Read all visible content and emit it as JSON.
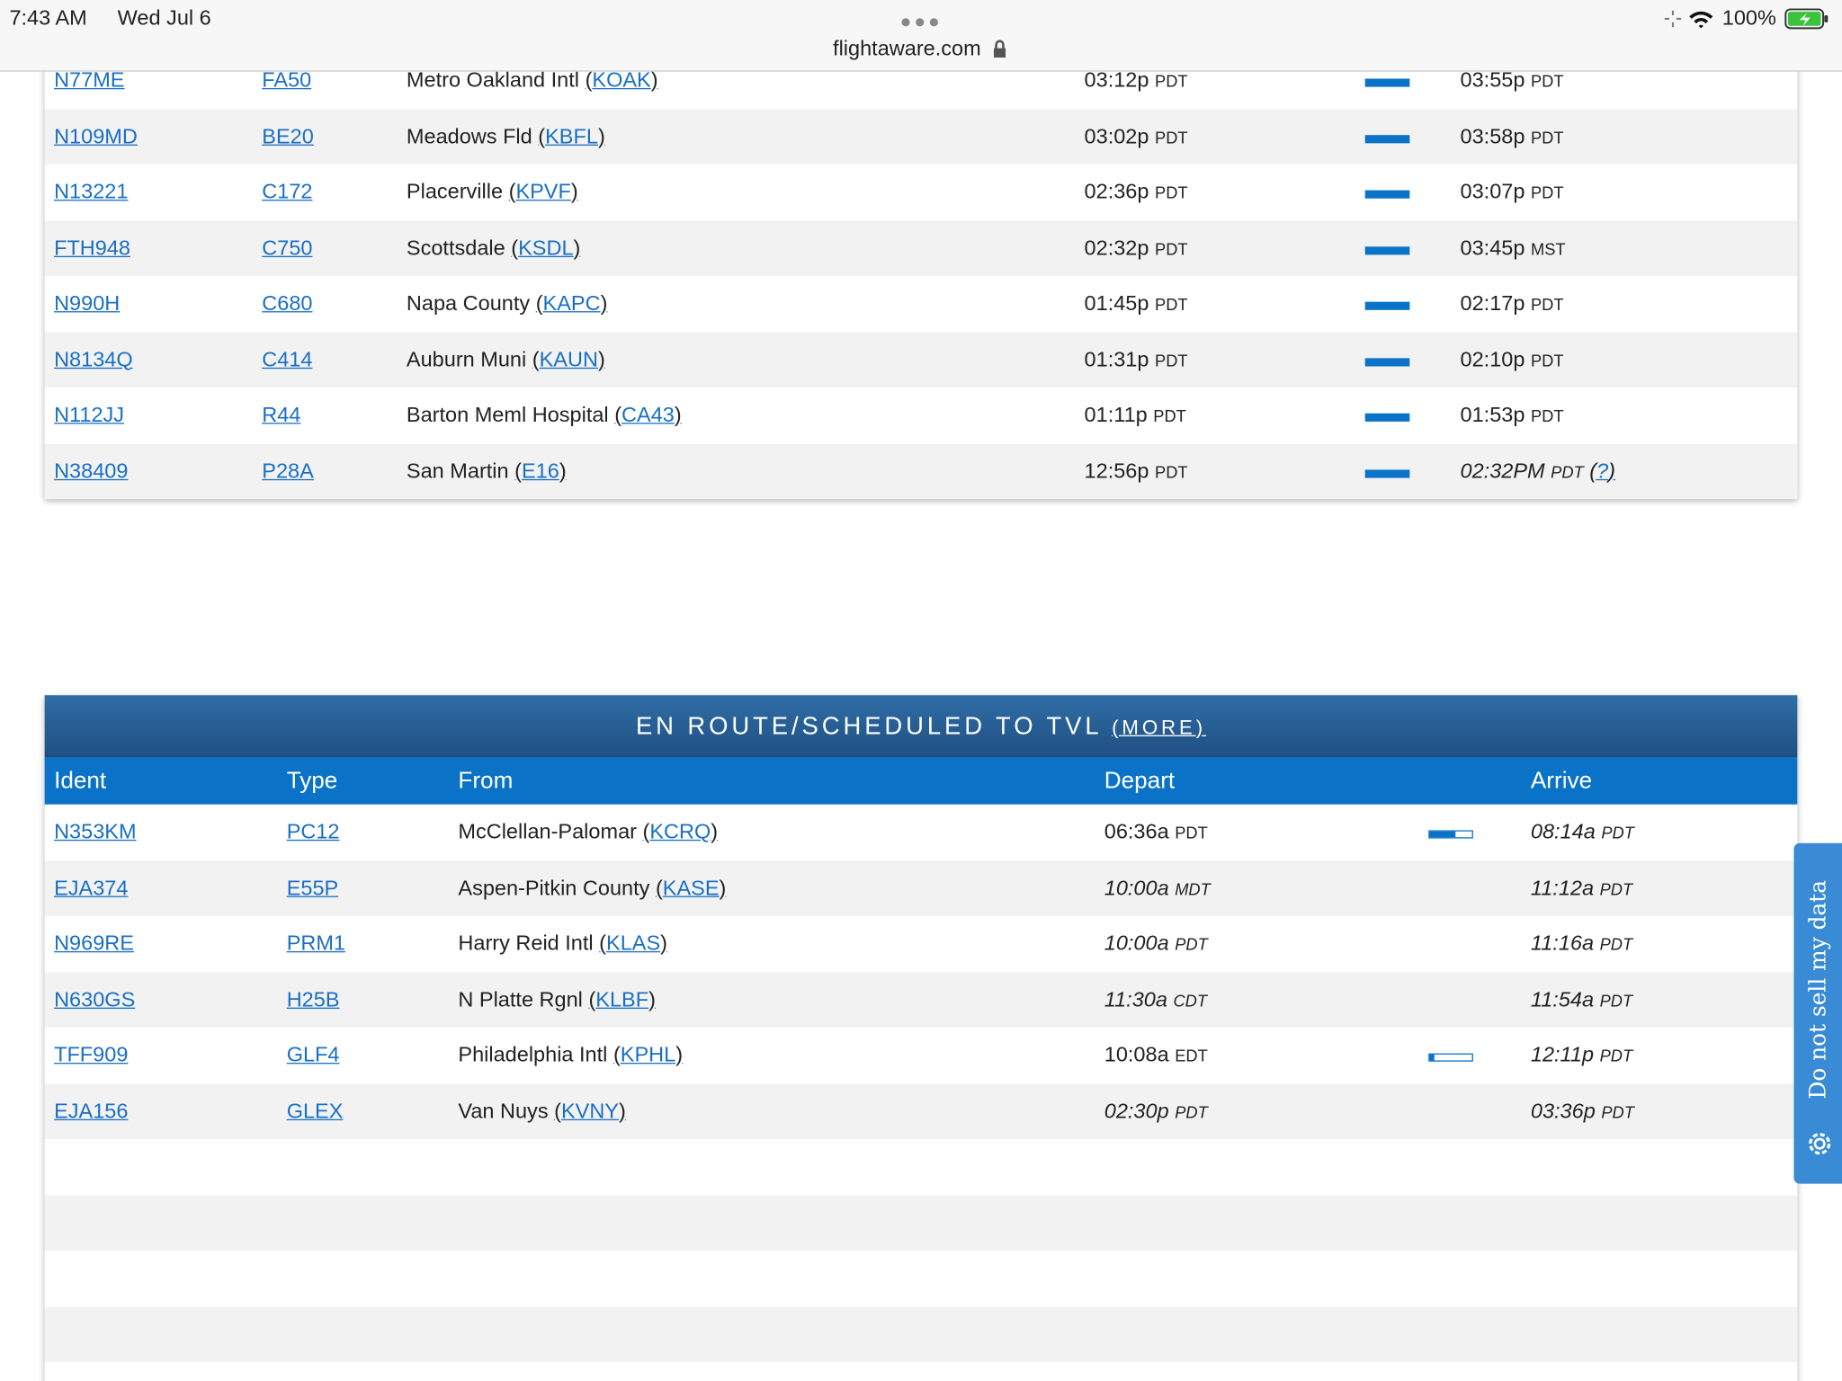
{
  "status_bar": {
    "time": "7:43 AM",
    "date": "Wed Jul 6",
    "battery": "100%",
    "url": "flightaware.com"
  },
  "departed": {
    "rows": [
      {
        "ident": "N77ME",
        "type": "FA50",
        "origin": "Metro Oakland Intl",
        "code": "KOAK",
        "depart": "03:12p",
        "depart_tz": "PDT",
        "arrive": "03:55p",
        "arrive_tz": "PDT",
        "progress": 100
      },
      {
        "ident": "N109MD",
        "type": "BE20",
        "origin": "Meadows Fld",
        "code": "KBFL",
        "depart": "03:02p",
        "depart_tz": "PDT",
        "arrive": "03:58p",
        "arrive_tz": "PDT",
        "progress": 100
      },
      {
        "ident": "N13221",
        "type": "C172",
        "origin": "Placerville",
        "code": "KPVF",
        "depart": "02:36p",
        "depart_tz": "PDT",
        "arrive": "03:07p",
        "arrive_tz": "PDT",
        "progress": 100
      },
      {
        "ident": "FTH948",
        "type": "C750",
        "origin": "Scottsdale",
        "code": "KSDL",
        "depart": "02:32p",
        "depart_tz": "PDT",
        "arrive": "03:45p",
        "arrive_tz": "MST",
        "progress": 100
      },
      {
        "ident": "N990H",
        "type": "C680",
        "origin": "Napa County",
        "code": "KAPC",
        "depart": "01:45p",
        "depart_tz": "PDT",
        "arrive": "02:17p",
        "arrive_tz": "PDT",
        "progress": 100
      },
      {
        "ident": "N8134Q",
        "type": "C414",
        "origin": "Auburn Muni",
        "code": "KAUN",
        "depart": "01:31p",
        "depart_tz": "PDT",
        "arrive": "02:10p",
        "arrive_tz": "PDT",
        "progress": 100
      },
      {
        "ident": "N112JJ",
        "type": "R44",
        "origin": "Barton Meml Hospital",
        "code": "CA43",
        "depart": "01:11p",
        "depart_tz": "PDT",
        "arrive": "01:53p",
        "arrive_tz": "PDT",
        "progress": 100
      },
      {
        "ident": "N38409",
        "type": "P28A",
        "origin": "San Martin",
        "code": "E16",
        "depart": "12:56p",
        "depart_tz": "PDT",
        "arrive": "02:32PM",
        "arrive_tz": "PDT",
        "arrive_note": "?",
        "arrive_italic": true,
        "progress": 100
      }
    ]
  },
  "en_route": {
    "title": "EN ROUTE/SCHEDULED TO TVL",
    "more": "MORE",
    "headers": [
      "Ident",
      "Type",
      "From",
      "Depart",
      "Arrive"
    ],
    "rows": [
      {
        "ident": "N353KM",
        "type": "PC12",
        "origin": "McClellan-Palomar",
        "code": "KCRQ",
        "depart": "06:36a",
        "depart_tz": "PDT",
        "arrive": "08:14a",
        "arrive_tz": "PDT",
        "depart_italic": false,
        "arrive_italic": true,
        "progress": 60
      },
      {
        "ident": "EJA374",
        "type": "E55P",
        "origin": "Aspen-Pitkin County",
        "code": "KASE",
        "depart": "10:00a",
        "depart_tz": "MDT",
        "arrive": "11:12a",
        "arrive_tz": "PDT",
        "depart_italic": true,
        "arrive_italic": true
      },
      {
        "ident": "N969RE",
        "type": "PRM1",
        "origin": "Harry Reid Intl",
        "code": "KLAS",
        "depart": "10:00a",
        "depart_tz": "PDT",
        "arrive": "11:16a",
        "arrive_tz": "PDT",
        "depart_italic": true,
        "arrive_italic": true
      },
      {
        "ident": "N630GS",
        "type": "H25B",
        "origin": "N Platte Rgnl",
        "code": "KLBF",
        "depart": "11:30a",
        "depart_tz": "CDT",
        "arrive": "11:54a",
        "arrive_tz": "PDT",
        "depart_italic": true,
        "arrive_italic": true
      },
      {
        "ident": "TFF909",
        "type": "GLF4",
        "origin": "Philadelphia Intl",
        "code": "KPHL",
        "depart": "10:08a",
        "depart_tz": "EDT",
        "arrive": "12:11p",
        "arrive_tz": "PDT",
        "depart_italic": false,
        "arrive_italic": true,
        "progress": 12
      },
      {
        "ident": "EJA156",
        "type": "GLEX",
        "origin": "Van Nuys",
        "code": "KVNY",
        "depart": "02:30p",
        "depart_tz": "PDT",
        "arrive": "03:36p",
        "arrive_tz": "PDT",
        "depart_italic": true,
        "arrive_italic": true
      }
    ]
  },
  "privacy_tab": "Do not sell my data"
}
